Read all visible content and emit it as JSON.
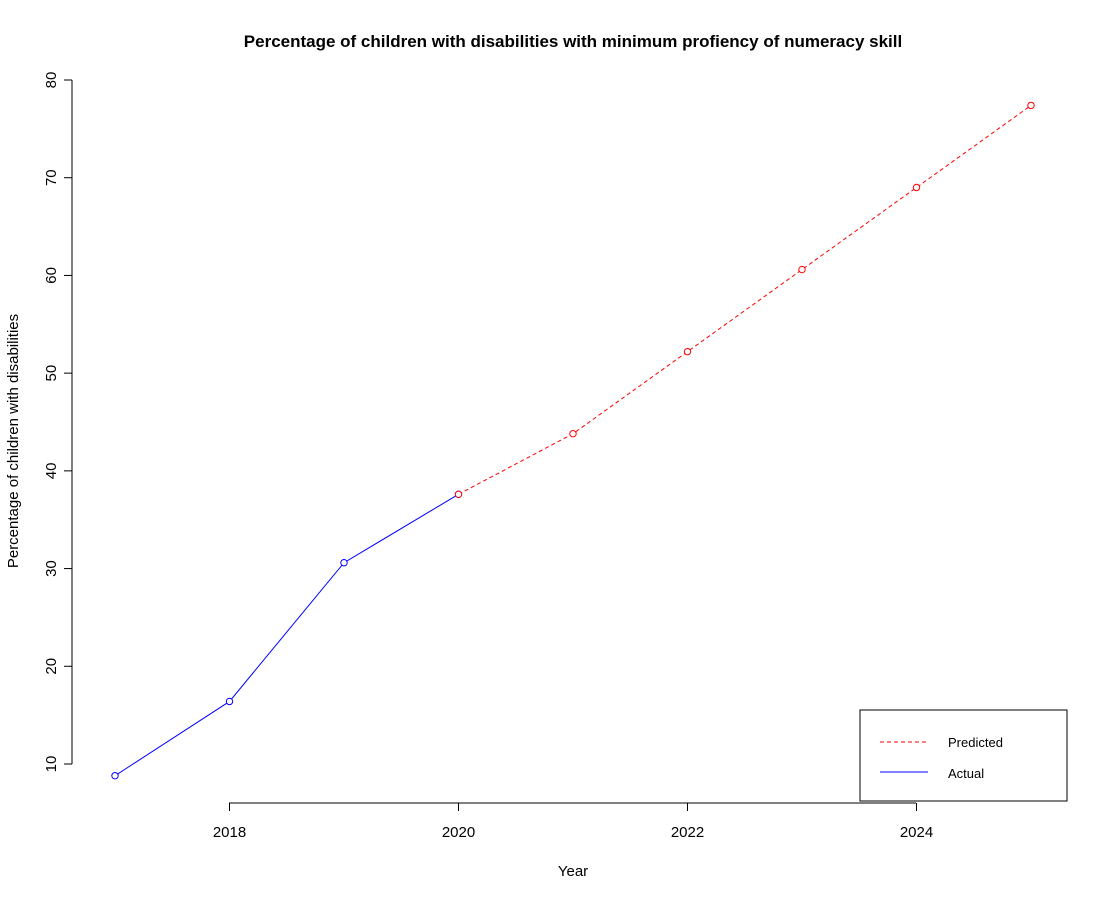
{
  "chart_data": {
    "type": "line",
    "title": "Percentage of children with disabilities with minimum profiency of numeracy skill",
    "xlabel": "Year",
    "ylabel": "Percentage of children with disabilities",
    "xlim": [
      2017,
      2025
    ],
    "ylim": [
      10,
      80
    ],
    "x_ticks": [
      2018,
      2020,
      2022,
      2024
    ],
    "y_ticks": [
      10,
      20,
      30,
      40,
      50,
      60,
      70,
      80
    ],
    "x_tick_labels": [
      "2018",
      "2020",
      "2022",
      "2024"
    ],
    "y_tick_labels": [
      "10",
      "20",
      "30",
      "40",
      "50",
      "60",
      "70",
      "80"
    ],
    "grid": false,
    "legend_position": "bottom-right",
    "series": [
      {
        "name": "Actual",
        "color": "#0000ff",
        "line_style": "solid",
        "marker": "open-circle",
        "x": [
          2017,
          2018,
          2019,
          2020
        ],
        "y": [
          8.8,
          16.4,
          30.6,
          37.6
        ]
      },
      {
        "name": "Predicted",
        "color": "#ff0000",
        "line_style": "dashed",
        "marker": "open-circle",
        "x": [
          2020,
          2021,
          2022,
          2023,
          2024,
          2025
        ],
        "y": [
          37.6,
          43.8,
          52.2,
          60.6,
          69.0,
          77.4
        ]
      }
    ],
    "legend": [
      {
        "label": "Predicted",
        "color": "#ff0000",
        "line_style": "dashed"
      },
      {
        "label": "Actual",
        "color": "#0000ff",
        "line_style": "solid"
      }
    ]
  }
}
